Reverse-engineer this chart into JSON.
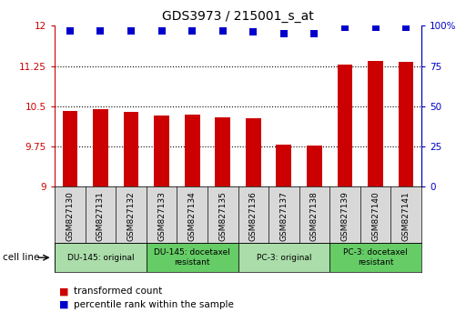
{
  "title": "GDS3973 / 215001_s_at",
  "categories": [
    "GSM827130",
    "GSM827131",
    "GSM827132",
    "GSM827133",
    "GSM827134",
    "GSM827135",
    "GSM827136",
    "GSM827137",
    "GSM827138",
    "GSM827139",
    "GSM827140",
    "GSM827141"
  ],
  "bar_values": [
    10.42,
    10.44,
    10.39,
    10.32,
    10.35,
    10.29,
    10.27,
    9.78,
    9.76,
    11.28,
    11.35,
    11.32
  ],
  "percentile_values": [
    97,
    97,
    97,
    97,
    97,
    97,
    96,
    95,
    95,
    99,
    99,
    99
  ],
  "bar_color": "#cc0000",
  "dot_color": "#0000cc",
  "ylim_left": [
    9.0,
    12.0
  ],
  "ylim_right": [
    0,
    100
  ],
  "yticks_left": [
    9.0,
    9.75,
    10.5,
    11.25,
    12.0
  ],
  "yticks_right": [
    0,
    25,
    50,
    75,
    100
  ],
  "ytick_labels_left": [
    "9",
    "9.75",
    "10.5",
    "11.25",
    "12"
  ],
  "ytick_labels_right": [
    "0",
    "25",
    "50",
    "75",
    "100%"
  ],
  "grid_values": [
    9.75,
    10.5,
    11.25
  ],
  "cell_line_groups": [
    {
      "label": "DU-145: original",
      "start": 0,
      "end": 3,
      "color": "#aaddaa"
    },
    {
      "label": "DU-145: docetaxel\nresistant",
      "start": 3,
      "end": 6,
      "color": "#66cc66"
    },
    {
      "label": "PC-3: original",
      "start": 6,
      "end": 9,
      "color": "#aaddaa"
    },
    {
      "label": "PC-3: docetaxel\nresistant",
      "start": 9,
      "end": 12,
      "color": "#66cc66"
    }
  ],
  "legend_items": [
    {
      "label": "transformed count",
      "color": "#cc0000"
    },
    {
      "label": "percentile rank within the sample",
      "color": "#0000cc"
    }
  ],
  "bar_width": 0.5,
  "dot_size": 28,
  "bar_bottom": 9.0
}
